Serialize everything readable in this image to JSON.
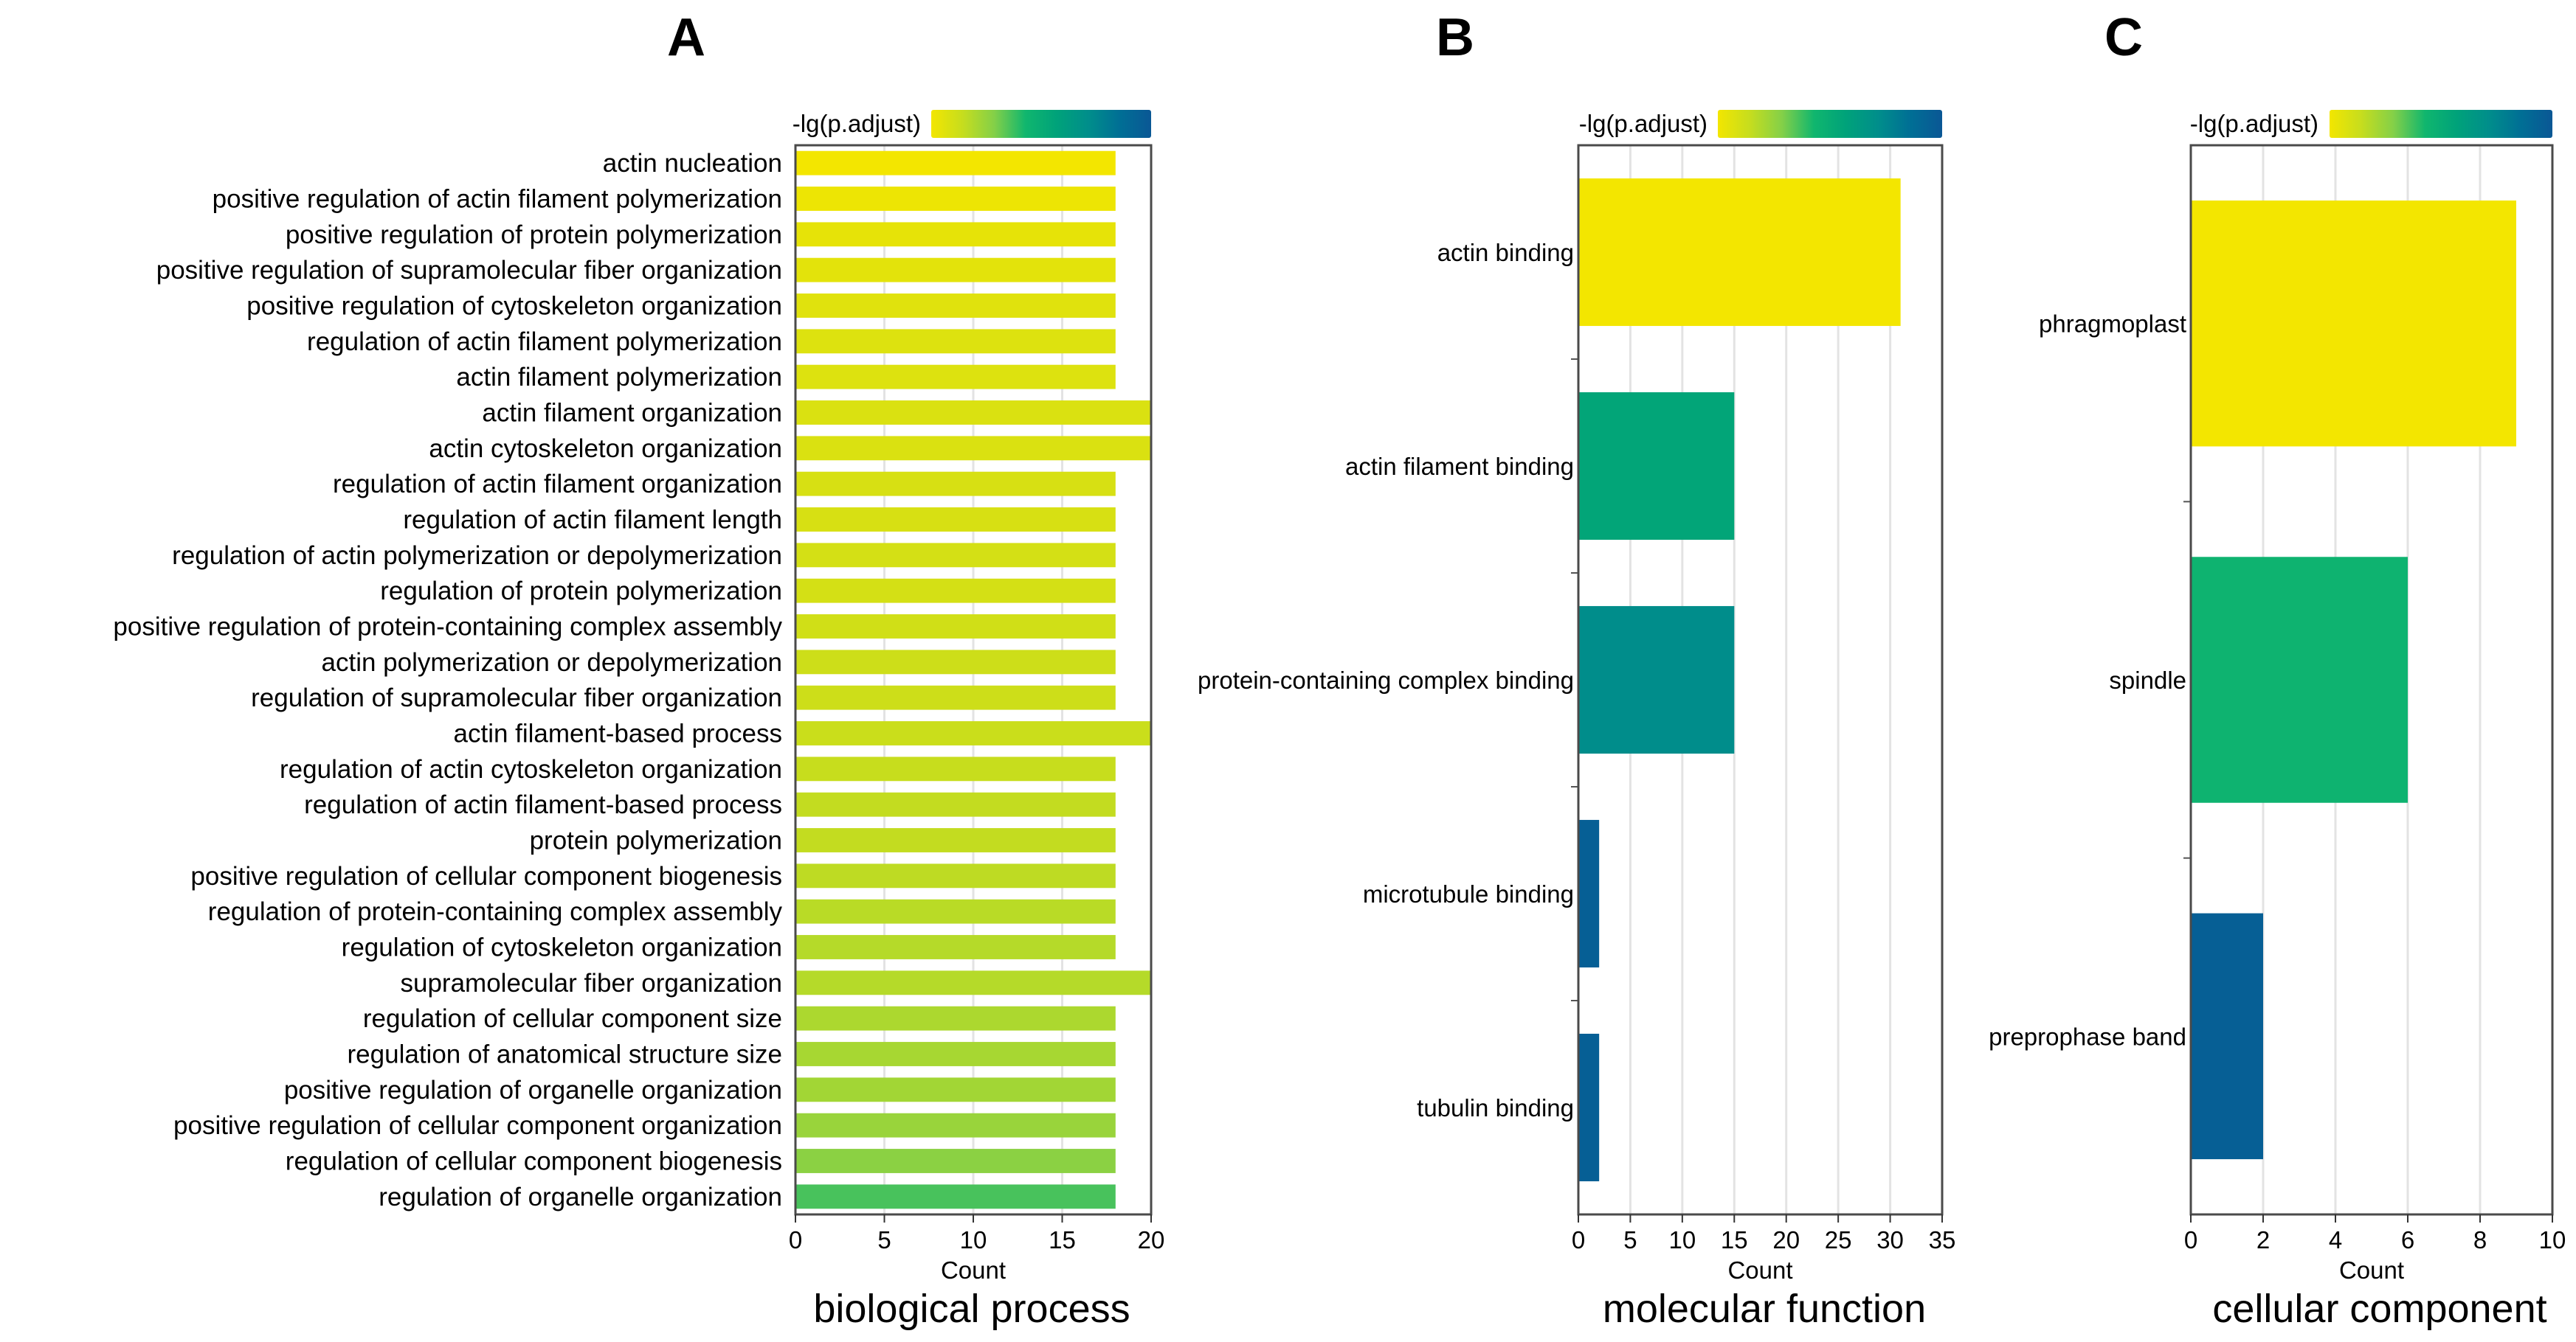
{
  "colorscale": {
    "stops": [
      "#f3e600",
      "#c6dd1e",
      "#84d048",
      "#10b66e",
      "#00a27a",
      "#008e8b",
      "#006f95",
      "#0a5795"
    ]
  },
  "chart_data": [
    {
      "panel": "A",
      "type": "bar",
      "orientation": "horizontal",
      "subtitle": "biological process",
      "xlabel": "Count",
      "legend_title": "-lg(p.adjust)",
      "xlim": [
        0,
        20
      ],
      "xticks": [
        0,
        5,
        10,
        15,
        20
      ],
      "categories": [
        "actin nucleation",
        "positive regulation of actin filament polymerization",
        "positive regulation of protein polymerization",
        "positive regulation of supramolecular fiber organization",
        "positive regulation of cytoskeleton organization",
        "regulation of actin filament polymerization",
        "actin filament polymerization",
        "actin filament organization",
        "actin cytoskeleton organization",
        "regulation of actin filament organization",
        "regulation of actin filament length",
        "regulation of actin polymerization or depolymerization",
        "regulation of protein polymerization",
        "positive regulation of protein-containing complex assembly",
        "actin polymerization or depolymerization",
        "regulation of supramolecular fiber organization",
        "actin filament-based process",
        "regulation of actin cytoskeleton organization",
        "regulation of actin filament-based process",
        "protein polymerization",
        "positive regulation of cellular component biogenesis",
        "regulation of protein-containing complex assembly",
        "regulation of cytoskeleton organization",
        "supramolecular fiber organization",
        "regulation of cellular component size",
        "regulation of anatomical structure size",
        "positive regulation of organelle organization",
        "positive regulation of cellular component organization",
        "regulation of cellular component biogenesis",
        "regulation of organelle organization"
      ],
      "values": [
        18,
        18,
        18,
        18,
        18,
        18,
        18,
        20,
        20,
        18,
        18,
        18,
        18,
        18,
        18,
        18,
        20,
        18,
        18,
        18,
        18,
        18,
        18,
        20,
        18,
        18,
        18,
        18,
        18,
        18
      ],
      "color_levels": [
        0.0,
        0.02,
        0.04,
        0.05,
        0.06,
        0.07,
        0.07,
        0.08,
        0.08,
        0.09,
        0.09,
        0.1,
        0.1,
        0.11,
        0.12,
        0.12,
        0.13,
        0.14,
        0.15,
        0.15,
        0.16,
        0.17,
        0.18,
        0.18,
        0.2,
        0.21,
        0.22,
        0.24,
        0.27,
        0.36
      ]
    },
    {
      "panel": "B",
      "type": "bar",
      "orientation": "horizontal",
      "subtitle": "molecular function",
      "xlabel": "Count",
      "legend_title": "-lg(p.adjust)",
      "xlim": [
        0,
        35
      ],
      "xticks": [
        0,
        5,
        10,
        15,
        20,
        25,
        30,
        35
      ],
      "categories": [
        "actin binding",
        "actin filament binding",
        "protein-containing complex binding",
        "microtubule binding",
        "tubulin binding"
      ],
      "values": [
        31,
        15,
        15,
        2,
        2
      ],
      "color_levels": [
        0.0,
        0.55,
        0.72,
        0.95,
        0.95
      ]
    },
    {
      "panel": "C",
      "type": "bar",
      "orientation": "horizontal",
      "subtitle": "cellular component",
      "xlabel": "Count",
      "legend_title": "-lg(p.adjust)",
      "xlim": [
        0,
        10
      ],
      "xticks": [
        0,
        2,
        4,
        6,
        8,
        10
      ],
      "categories": [
        "phragmoplast",
        "spindle",
        "preprophase band"
      ],
      "values": [
        9,
        6,
        2
      ],
      "color_levels": [
        0.0,
        0.45,
        0.95
      ]
    }
  ]
}
